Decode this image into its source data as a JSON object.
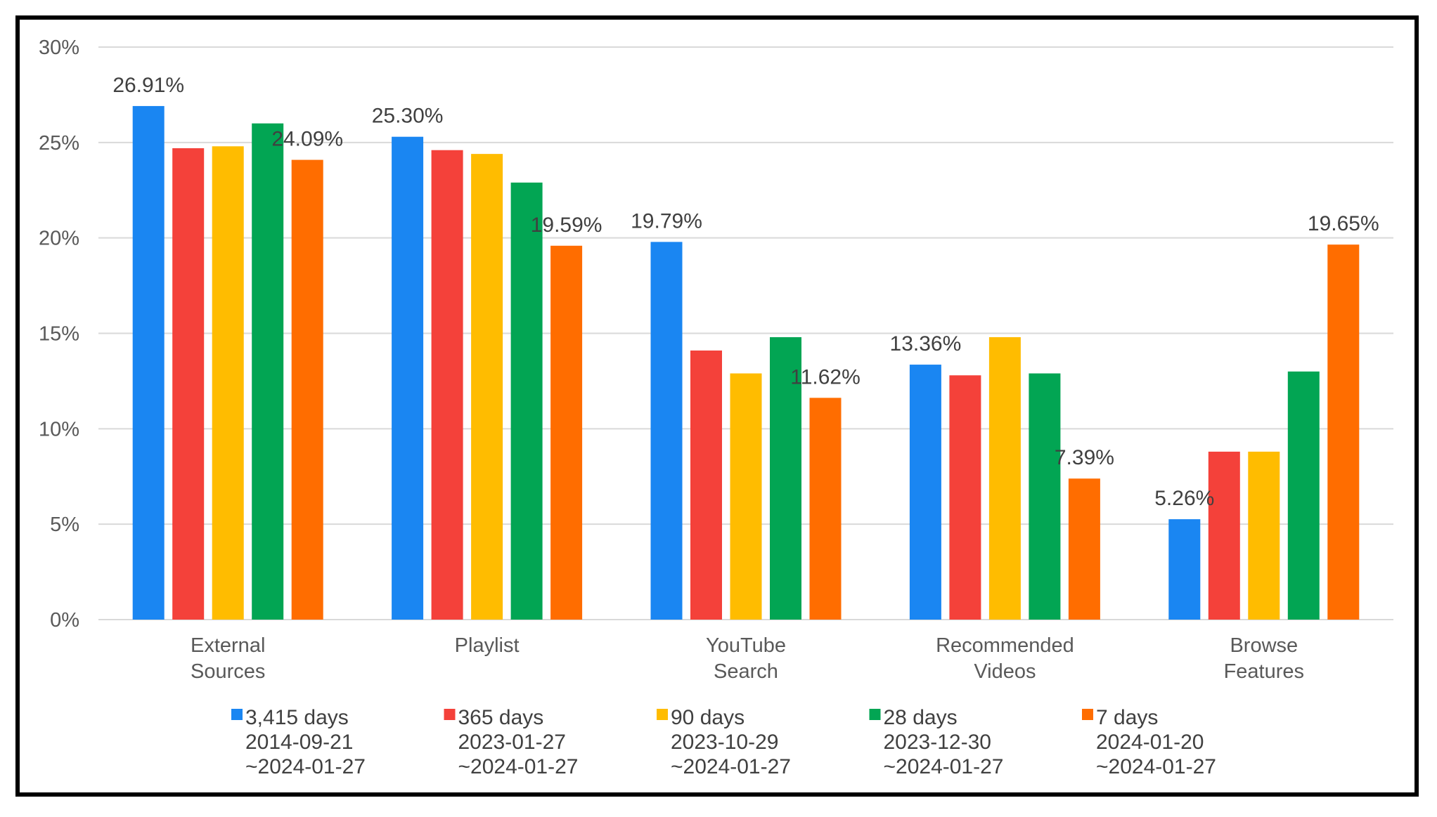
{
  "chart_data": {
    "type": "bar",
    "title": "",
    "xlabel": "",
    "ylabel": "",
    "ylim": [
      0,
      30
    ],
    "yticks": [
      "0%",
      "5%",
      "10%",
      "15%",
      "20%",
      "25%",
      "30%"
    ],
    "grid": true,
    "legend_position": "bottom",
    "categories": [
      [
        "External",
        "Sources"
      ],
      [
        "Playlist"
      ],
      [
        "YouTube",
        "Search"
      ],
      [
        "Recommended",
        "Videos"
      ],
      [
        "Browse",
        "Features"
      ]
    ],
    "series": [
      {
        "name": "3,415 days",
        "range_start": "2014-09-21",
        "range_end": "~2024-01-27",
        "color": "#1A86F2",
        "values": [
          26.91,
          25.3,
          19.79,
          13.36,
          5.26
        ]
      },
      {
        "name": "365 days",
        "range_start": "2023-01-27",
        "range_end": "~2024-01-27",
        "color": "#F4413A",
        "values": [
          24.7,
          24.6,
          14.1,
          12.8,
          8.8
        ]
      },
      {
        "name": "90 days",
        "range_start": "2023-10-29",
        "range_end": "~2024-01-27",
        "color": "#FFBC00",
        "values": [
          24.8,
          24.4,
          12.9,
          14.8,
          8.8
        ]
      },
      {
        "name": "28 days",
        "range_start": "2023-12-30",
        "range_end": "~2024-01-27",
        "color": "#02A553",
        "values": [
          26.0,
          22.9,
          14.8,
          12.9,
          13.0
        ]
      },
      {
        "name": "7 days",
        "range_start": "2024-01-20",
        "range_end": "~2024-01-27",
        "color": "#FF6D00",
        "values": [
          24.09,
          19.59,
          11.62,
          7.39,
          19.65
        ]
      }
    ],
    "data_labels": [
      {
        "series": 0,
        "category": 0,
        "text": "26.91%"
      },
      {
        "series": 4,
        "category": 0,
        "text": "24.09%"
      },
      {
        "series": 0,
        "category": 1,
        "text": "25.30%"
      },
      {
        "series": 4,
        "category": 1,
        "text": "19.59%"
      },
      {
        "series": 0,
        "category": 2,
        "text": "19.79%"
      },
      {
        "series": 4,
        "category": 2,
        "text": "11.62%"
      },
      {
        "series": 0,
        "category": 3,
        "text": "13.36%"
      },
      {
        "series": 4,
        "category": 3,
        "text": "7.39%"
      },
      {
        "series": 0,
        "category": 4,
        "text": "5.26%"
      },
      {
        "series": 4,
        "category": 4,
        "text": "19.65%"
      }
    ]
  }
}
